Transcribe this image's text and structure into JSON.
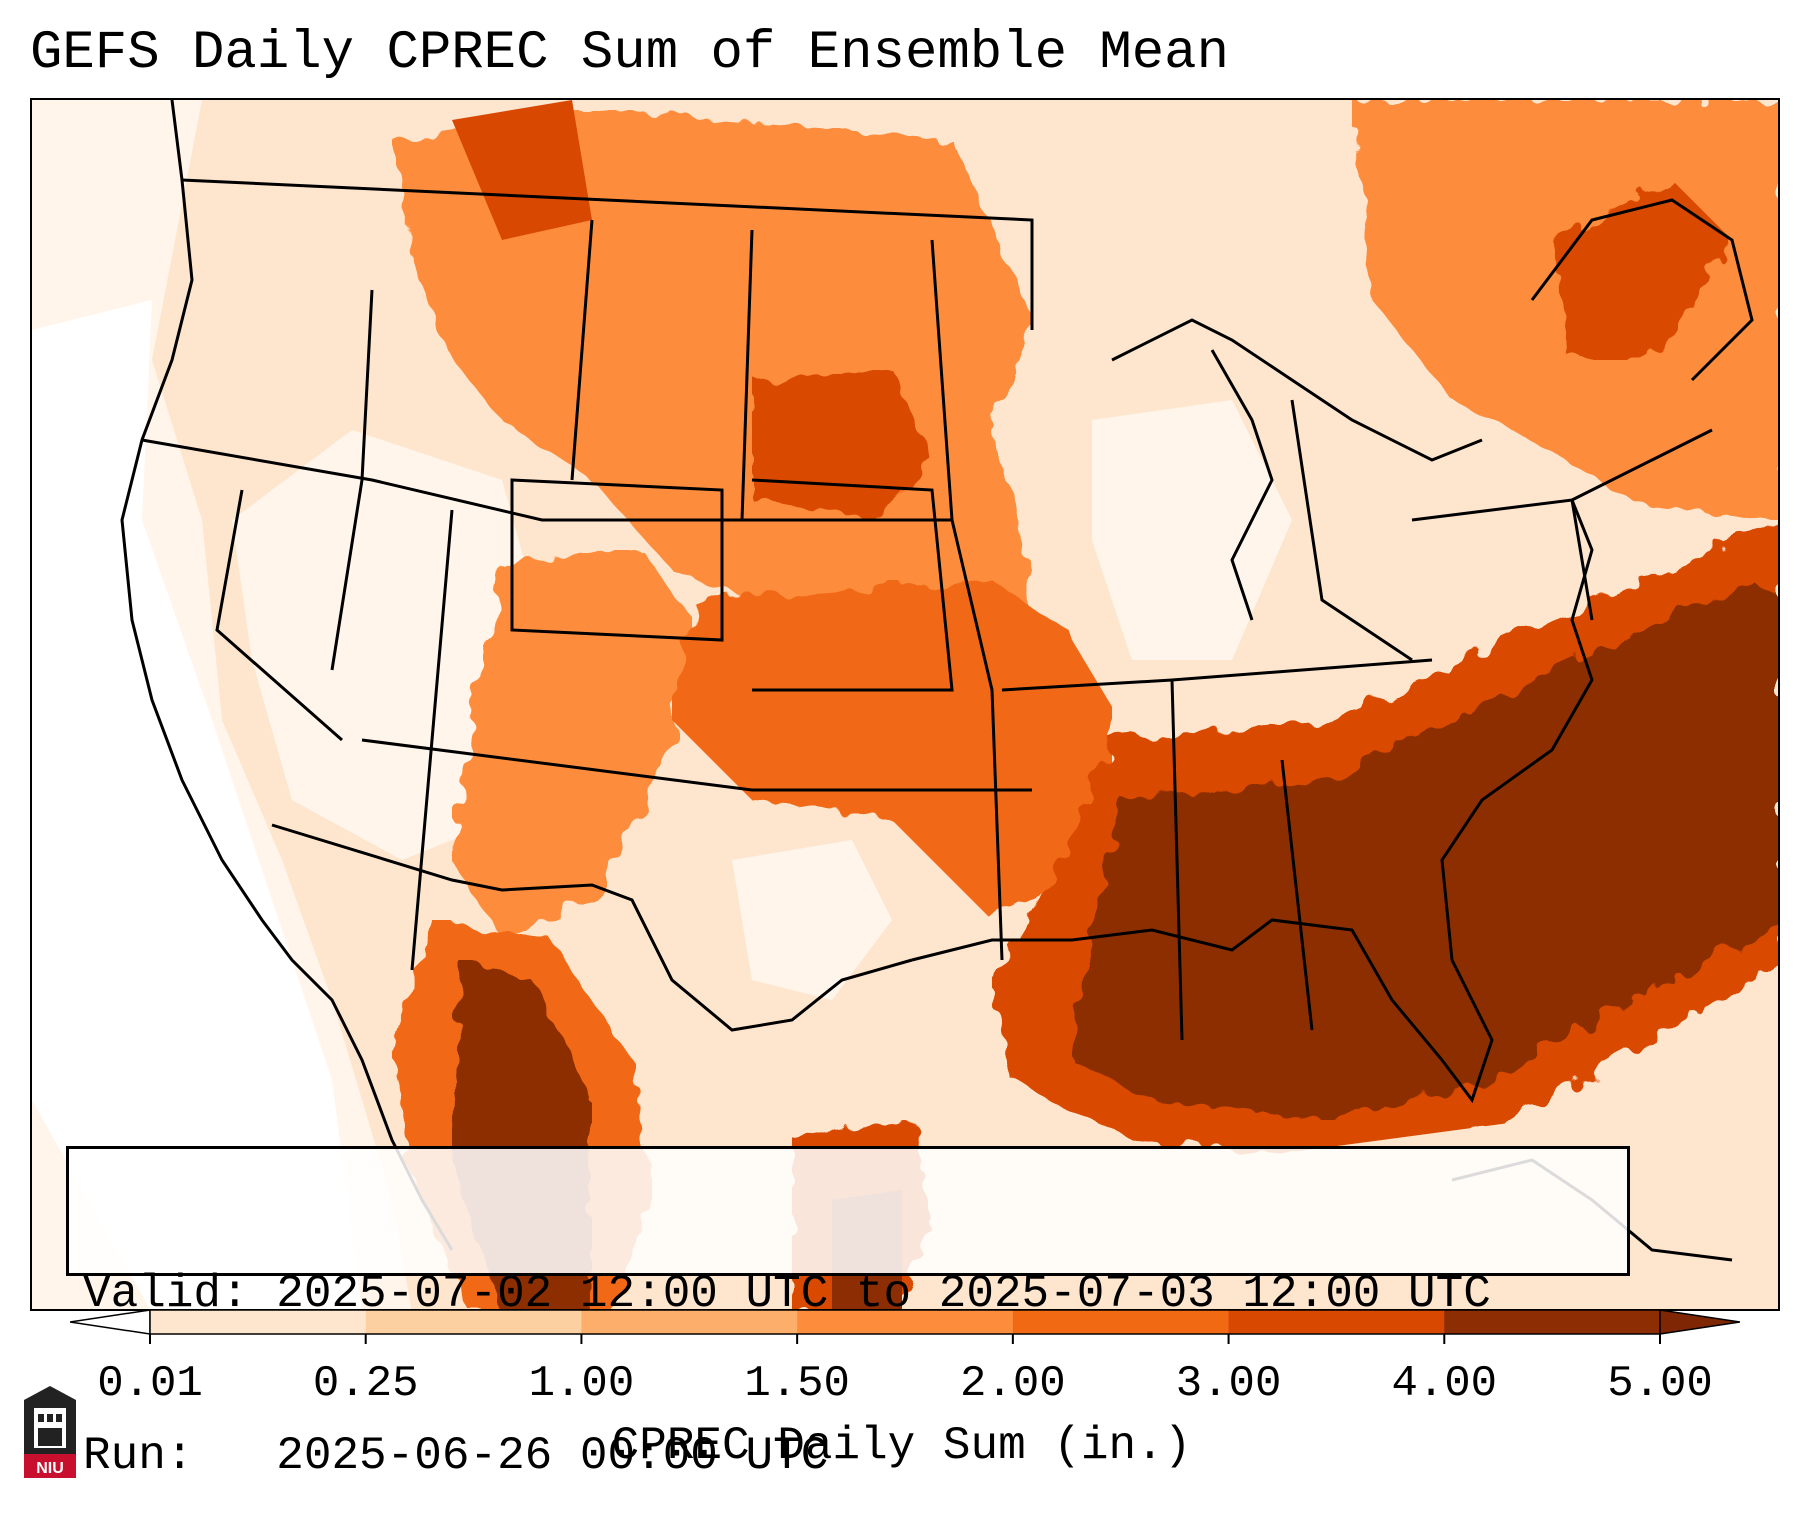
{
  "title": "GEFS Daily CPREC Sum of Ensemble Mean",
  "info": {
    "valid_line": "Valid: 2025-07-02 12:00 UTC to 2025-07-03 12:00 UTC",
    "run_line": "Run:   2025-06-26 00:00 UTC"
  },
  "colorbar": {
    "label": "CPREC Daily Sum (in.)",
    "ticks": [
      "0.01",
      "0.25",
      "1.00",
      "1.50",
      "2.00",
      "3.00",
      "4.00",
      "5.00"
    ],
    "colors": [
      "#fff5eb",
      "#fee6ce",
      "#fdd0a2",
      "#fdae6b",
      "#fd8d3c",
      "#f16913",
      "#d94801",
      "#8c2d04"
    ],
    "under_color": "#ffffff",
    "over_color": "#7f2704"
  },
  "logo": {
    "text": "NIU"
  }
}
